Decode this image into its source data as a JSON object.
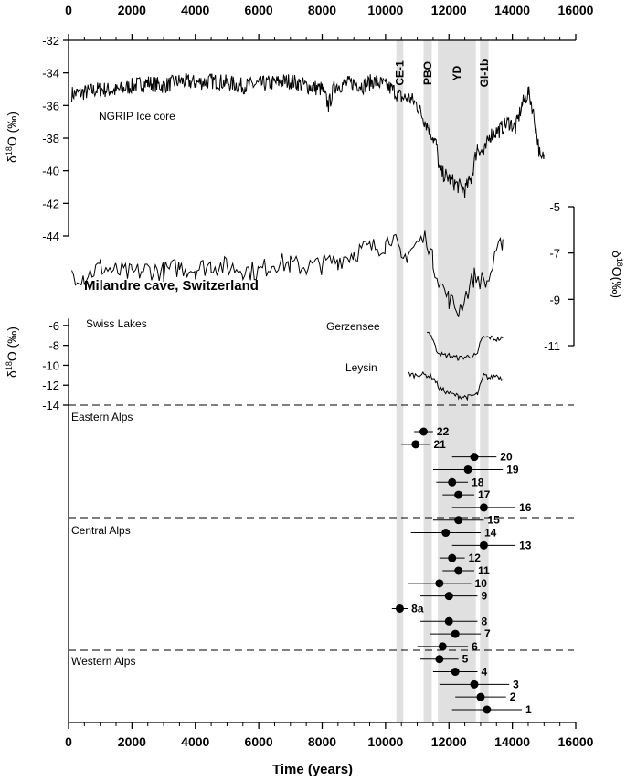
{
  "chart_data": {
    "type": "line",
    "xlabel": "Time (years)",
    "x_axis": {
      "range": [
        0,
        16000
      ],
      "ticks": [
        0,
        2000,
        4000,
        6000,
        8000,
        10000,
        12000,
        14000,
        16000
      ],
      "tick_labels": [
        "0",
        "2000",
        "4000",
        "6000",
        "8000",
        "10000",
        "12000",
        "14000",
        "16000"
      ]
    },
    "bands": [
      {
        "label": "CE-1",
        "x0": 10340,
        "x1": 10560
      },
      {
        "label": "PBO",
        "x0": 11200,
        "x1": 11460
      },
      {
        "label": "YD",
        "x0": 11650,
        "x1": 12850
      },
      {
        "label": "GI-1b",
        "x0": 12980,
        "x1": 13250
      }
    ],
    "ngrip": {
      "label": "NGRIP Ice core",
      "ylabel": "δ18O (‰)",
      "yticks": [
        -32,
        -34,
        -36,
        -38,
        -40,
        -42,
        -44
      ],
      "ylim": [
        -44,
        -32
      ],
      "x": [
        100,
        500,
        1000,
        1500,
        2000,
        2500,
        3000,
        3500,
        4000,
        4500,
        5000,
        5500,
        6000,
        6500,
        7000,
        7500,
        8000,
        8200,
        8400,
        8700,
        9000,
        9300,
        9600,
        9900,
        10200,
        10500,
        10800,
        11000,
        11200,
        11400,
        11600,
        11700,
        11900,
        12200,
        12500,
        12700,
        12900,
        13100,
        13300,
        13600,
        13900,
        14100,
        14300,
        14500,
        14600,
        14750,
        14900,
        15000
      ],
      "y": [
        -35.3,
        -35.2,
        -35.0,
        -35.1,
        -34.8,
        -34.6,
        -34.8,
        -34.5,
        -34.6,
        -34.5,
        -34.6,
        -34.8,
        -34.7,
        -34.6,
        -34.5,
        -34.8,
        -35.0,
        -36.0,
        -34.8,
        -34.7,
        -34.6,
        -34.8,
        -34.5,
        -34.7,
        -35.0,
        -35.5,
        -35.6,
        -36.0,
        -36.8,
        -37.5,
        -38.4,
        -40.0,
        -40.3,
        -40.8,
        -41.2,
        -40.5,
        -38.5,
        -39.0,
        -37.8,
        -37.5,
        -37.0,
        -37.4,
        -36.0,
        -35.2,
        -35.8,
        -37.5,
        -39.5,
        -39.0
      ]
    },
    "milandre": {
      "label": "Milandre cave, Switzerland",
      "ylabel": "δ18O(‰)",
      "yticks": [
        -5,
        -7,
        -9,
        -11
      ],
      "ylim": [
        -11,
        -5
      ],
      "x": [
        100,
        500,
        1000,
        1500,
        2000,
        2500,
        3000,
        3500,
        4000,
        4500,
        5000,
        5500,
        6000,
        6500,
        7000,
        7500,
        8000,
        8500,
        9000,
        9300,
        9500,
        9800,
        10000,
        10200,
        10400,
        10500,
        10700,
        11000,
        11300,
        11500,
        11800,
        12000,
        12300,
        12800,
        13200,
        13700
      ],
      "y": [
        -7.9,
        -8.0,
        -7.6,
        -7.8,
        -7.9,
        -7.7,
        -7.8,
        -7.6,
        -7.7,
        -7.5,
        -7.6,
        -7.7,
        -7.8,
        -7.4,
        -7.5,
        -7.6,
        -7.5,
        -7.3,
        -7.0,
        -6.8,
        -6.8,
        -6.7,
        -6.6,
        -6.2,
        -6.9,
        -7.4,
        -7.0,
        -6.6,
        -6.3,
        -7.4,
        -8.5,
        -9.0,
        -9.5,
        -8.0,
        -8.3,
        -6.4
      ]
    },
    "swiss_lakes": {
      "label": "Swiss Lakes",
      "ylabel": "δ18O (‰)",
      "yticks": [
        -6,
        -8,
        -10,
        -12,
        -14
      ],
      "ylim": [
        -14,
        -5
      ],
      "series": [
        {
          "name": "Gerzensee",
          "x": [
            11300,
            11400,
            11500,
            11600,
            11700,
            11800,
            12000,
            12300,
            12600,
            12900,
            13000,
            13100,
            13300,
            13500,
            13700
          ],
          "y": [
            -6.6,
            -6.8,
            -7.4,
            -8.5,
            -8.7,
            -9.0,
            -9.0,
            -9.3,
            -9.1,
            -9.0,
            -7.5,
            -7.2,
            -7.2,
            -7.4,
            -7.3
          ]
        },
        {
          "name": "Leysin",
          "x": [
            10700,
            10900,
            11100,
            11300,
            11500,
            11700,
            12000,
            12300,
            12600,
            12900,
            13100,
            13300,
            13500,
            13700
          ],
          "y": [
            -10.8,
            -11.0,
            -10.9,
            -11.0,
            -11.2,
            -12.3,
            -12.8,
            -13.1,
            -13.2,
            -12.9,
            -11.0,
            -11.3,
            -11.0,
            -11.4
          ]
        }
      ]
    },
    "moraines": {
      "regions": [
        "Eastern Alps",
        "Central Alps",
        "Western Alps"
      ],
      "points": [
        {
          "label": "22",
          "x": 11200,
          "err": 300
        },
        {
          "label": "21",
          "x": 10950,
          "err": 450
        },
        {
          "label": "20",
          "x": 12800,
          "err": 700
        },
        {
          "label": "19",
          "x": 12600,
          "err": 1100
        },
        {
          "label": "18",
          "x": 12100,
          "err": 500
        },
        {
          "label": "17",
          "x": 12300,
          "err": 500
        },
        {
          "label": "16",
          "x": 13100,
          "err": 1000
        },
        {
          "label": "15",
          "x": 12300,
          "err": 800
        },
        {
          "label": "14",
          "x": 11900,
          "err": 1100
        },
        {
          "label": "13",
          "x": 13100,
          "err": 1000
        },
        {
          "label": "12",
          "x": 12100,
          "err": 400
        },
        {
          "label": "11",
          "x": 12300,
          "err": 500
        },
        {
          "label": "10",
          "x": 11700,
          "err": 1000
        },
        {
          "label": "9",
          "x": 12000,
          "err": 900
        },
        {
          "label": "8a",
          "x": 10450,
          "err": 250
        },
        {
          "label": "8",
          "x": 12000,
          "err": 900
        },
        {
          "label": "7",
          "x": 12200,
          "err": 800
        },
        {
          "label": "6",
          "x": 11800,
          "err": 800
        },
        {
          "label": "5",
          "x": 11700,
          "err": 600
        },
        {
          "label": "4",
          "x": 12200,
          "err": 700
        },
        {
          "label": "3",
          "x": 12800,
          "err": 1100
        },
        {
          "label": "2",
          "x": 13000,
          "err": 800
        },
        {
          "label": "1",
          "x": 13200,
          "err": 1100
        }
      ]
    }
  }
}
